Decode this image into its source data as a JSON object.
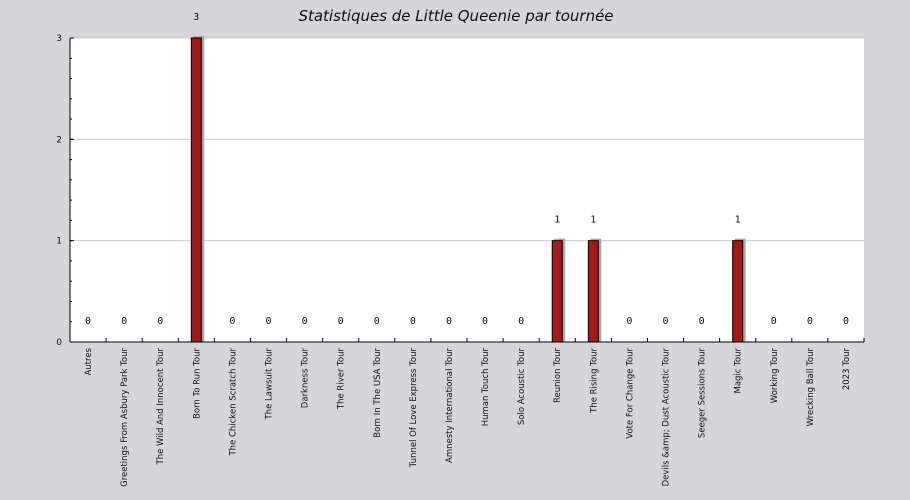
{
  "chart_data": {
    "type": "bar",
    "title": "Statistiques de Little Queenie par tournée",
    "xlabel": "",
    "ylabel": "",
    "ylim": [
      0,
      3
    ],
    "yticks": [
      0,
      1,
      2,
      3
    ],
    "grid": true,
    "categories": [
      "Autres",
      "Greetings From Asbury Park Tour",
      "The Wild And Innocent Tour",
      "Born To Run Tour",
      "The Chicken Scratch Tour",
      "The Lawsuit Tour",
      "Darkness Tour",
      "The River Tour",
      "Born In The USA Tour",
      "Tunnel Of Love Express Tour",
      "Amnesty International Tour",
      "Human Touch Tour",
      "Solo Acoustic Tour",
      "Reunion Tour",
      "The Rising Tour",
      "Vote For Change Tour",
      "Devils &amp; Dust Acoustic Tour",
      "Seeger Sessions Tour",
      "Magic Tour",
      "Working Tour",
      "Wrecking Ball Tour",
      "2023 Tour"
    ],
    "values": [
      0,
      0,
      0,
      3,
      0,
      0,
      0,
      0,
      0,
      0,
      0,
      0,
      0,
      1,
      1,
      0,
      0,
      0,
      1,
      0,
      0,
      0
    ],
    "colors": {
      "bar": "#a31a1a",
      "bar_shadow": "#a8a8a8",
      "background": "#d6d5da",
      "plot_background": "#ffffff",
      "grid": "#cccccc"
    }
  }
}
